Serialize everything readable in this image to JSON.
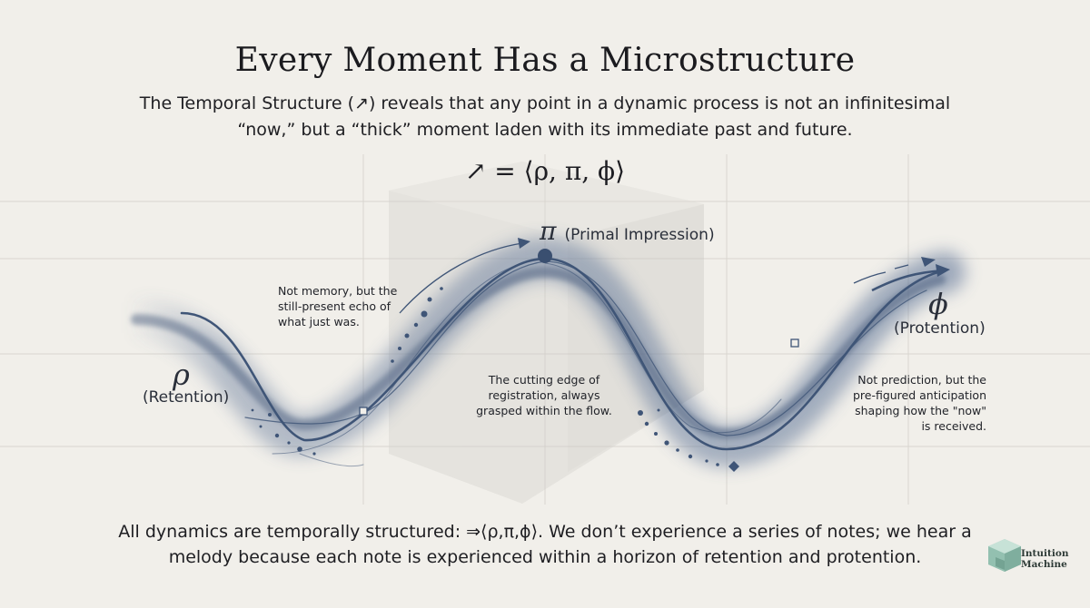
{
  "title": "Every Moment Has a Microstructure",
  "subtitle": "The Temporal Structure (↗) reveals that any point in a dynamic process is not an infinitesimal “now,” but a “thick” moment laden with its immediate past and future.",
  "formula": "↗ = ⟨ρ, π, ϕ⟩",
  "retention": {
    "symbol": "ρ",
    "label": "(Retention)"
  },
  "primal": {
    "symbol": "π",
    "label": "(Primal Impression)"
  },
  "protention": {
    "symbol": "ϕ",
    "label": "(Protention)"
  },
  "notes": {
    "retention": "Not memory, but the still-present echo of what just was.",
    "primal": "The cutting edge of registration, always grasped within the flow.",
    "protention": "Not prediction, but the pre-figured anticipation shaping how the \"now\" is received."
  },
  "footer": "All dynamics are temporally structured: ⇒⟨ρ,π,ϕ⟩. We don’t experience a series of notes; we hear a melody because each note is experienced within a horizon of retention and protention.",
  "logo": {
    "line1": "Intuition",
    "line2": "Machine"
  },
  "colors": {
    "curve": "#3f5577",
    "band": "#5e7497",
    "grid": "#d9d6d0",
    "logo": "#7fae9e"
  }
}
